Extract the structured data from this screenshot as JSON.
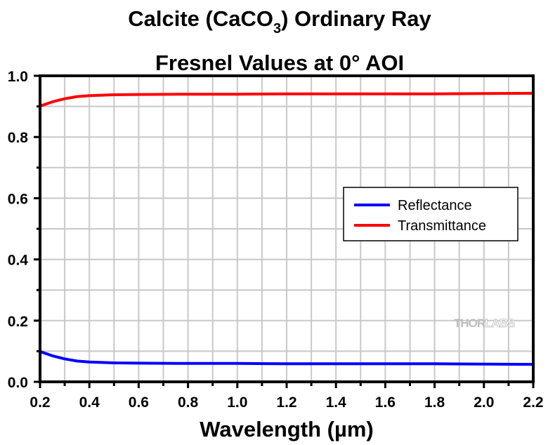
{
  "chart_data": {
    "type": "line",
    "title_line1_parts": [
      "Calcite (CaCO",
      "3",
      ") Ordinary Ray"
    ],
    "title_line2": "Fresnel Values at 0° AOI",
    "xlabel": "Wavelength (µm)",
    "ylabel": "",
    "xlim": [
      0.2,
      2.2
    ],
    "ylim": [
      0.0,
      1.0
    ],
    "x_ticks": [
      0.2,
      0.4,
      0.6,
      0.8,
      1.0,
      1.2,
      1.4,
      1.6,
      1.8,
      2.0,
      2.2
    ],
    "x_tick_labels": [
      "0.2",
      "0.4",
      "0.6",
      "0.8",
      "1.0",
      "1.2",
      "1.4",
      "1.6",
      "1.8",
      "2.0",
      "2.2"
    ],
    "y_ticks": [
      0.0,
      0.2,
      0.4,
      0.6,
      0.8,
      1.0
    ],
    "y_tick_labels": [
      "0.0",
      "0.2",
      "0.4",
      "0.6",
      "0.8",
      "1.0"
    ],
    "grid": true,
    "grid_step_x": 0.1,
    "grid_step_y": 0.1,
    "legend_position": "center-right",
    "watermark": {
      "part1": "THOR",
      "part2": "LABS"
    },
    "series": [
      {
        "name": "Reflectance",
        "color": "#0000ff",
        "x": [
          0.2,
          0.25,
          0.3,
          0.35,
          0.4,
          0.5,
          0.6,
          0.8,
          1.0,
          1.2,
          1.4,
          1.6,
          1.8,
          2.0,
          2.2
        ],
        "y": [
          0.099,
          0.085,
          0.075,
          0.068,
          0.065,
          0.062,
          0.061,
          0.06,
          0.06,
          0.059,
          0.059,
          0.059,
          0.059,
          0.058,
          0.057
        ]
      },
      {
        "name": "Transmittance",
        "color": "#ff0000",
        "x": [
          0.2,
          0.25,
          0.3,
          0.35,
          0.4,
          0.5,
          0.6,
          0.8,
          1.0,
          1.2,
          1.4,
          1.6,
          1.8,
          2.0,
          2.2
        ],
        "y": [
          0.901,
          0.915,
          0.925,
          0.932,
          0.935,
          0.938,
          0.939,
          0.94,
          0.94,
          0.941,
          0.941,
          0.941,
          0.941,
          0.942,
          0.943
        ]
      }
    ]
  }
}
